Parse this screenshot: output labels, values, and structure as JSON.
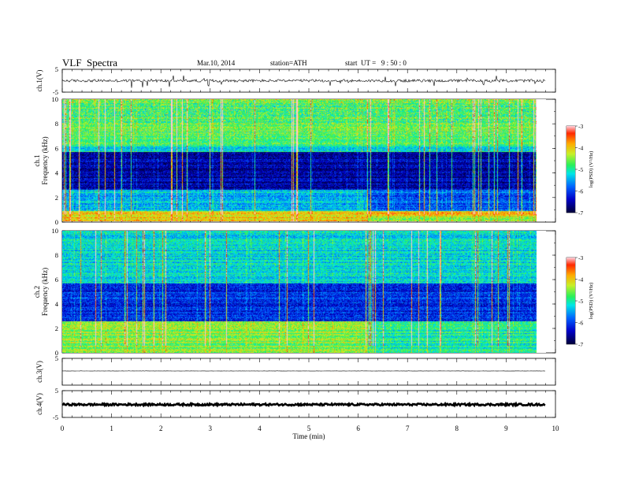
{
  "header": {
    "title": "VLF  Spectra",
    "date": "Mar.10, 2014",
    "station": "station=ATH",
    "start_ut": "start  UT =   9 : 50 : 0"
  },
  "chart_data": [
    {
      "type": "line",
      "name": "ch1-waveform",
      "ylabel": "ch.1(V)",
      "ylim": [
        -5,
        5
      ],
      "yticks": [
        5,
        -5
      ],
      "xlim": [
        0,
        10
      ],
      "trace_mean": 0,
      "trace_noise": 0.6,
      "trace_spike_amplitude": 3,
      "data_end_min": 9.8
    },
    {
      "type": "heatmap",
      "name": "ch1-spectrogram",
      "ylabel_channel": "ch.1",
      "ylabel": "Frequency  (kHz)",
      "ylim": [
        0,
        10
      ],
      "yticks": [
        0,
        2,
        4,
        6,
        8,
        10
      ],
      "xlim": [
        0,
        10
      ],
      "data_end_min": 9.8,
      "colorbar": {
        "label": "log(PSD) (V²/Hz)",
        "range": [
          -7,
          -3
        ],
        "ticks": [
          "-3",
          "-4",
          "-5",
          "-6",
          "-7"
        ]
      },
      "quiet_band_khz": [
        3,
        6
      ],
      "regime_change_min": 6.3
    },
    {
      "type": "heatmap",
      "name": "ch2-spectrogram",
      "ylabel_channel": "ch.2",
      "ylabel": "Frequency  (kHz)",
      "ylim": [
        0,
        10
      ],
      "yticks": [
        0,
        2,
        4,
        6,
        8,
        10
      ],
      "xlim": [
        0,
        10
      ],
      "data_end_min": 9.8,
      "colorbar": {
        "label": "log(PSD) (V²/Hz)",
        "range": [
          -7,
          -3
        ],
        "ticks": [
          "-3",
          "-4",
          "-5",
          "-6",
          "-7"
        ]
      },
      "quiet_band_khz": [
        3,
        6
      ],
      "regime_change_min": 6.3
    },
    {
      "type": "line",
      "name": "ch3-waveform",
      "ylabel": "ch.3(V)",
      "ylim": [
        -5,
        5
      ],
      "yticks": [
        5
      ],
      "xlim": [
        0,
        10
      ],
      "trace_mean": 0.3,
      "trace_noise": 0.05,
      "data_end_min": 9.8
    },
    {
      "type": "line",
      "name": "ch4-waveform",
      "ylabel": "ch.4(V)",
      "ylim": [
        -5,
        5
      ],
      "yticks": [
        5,
        -5
      ],
      "xlim": [
        0,
        10
      ],
      "trace_mean": -0.2,
      "trace_noise": 0.35,
      "data_end_min": 9.8
    }
  ],
  "x_axis": {
    "label": "Time  (min)",
    "ticks": [
      "0",
      "1",
      "2",
      "3",
      "4",
      "5",
      "6",
      "7",
      "8",
      "9",
      "10"
    ],
    "range": [
      0,
      10
    ]
  }
}
